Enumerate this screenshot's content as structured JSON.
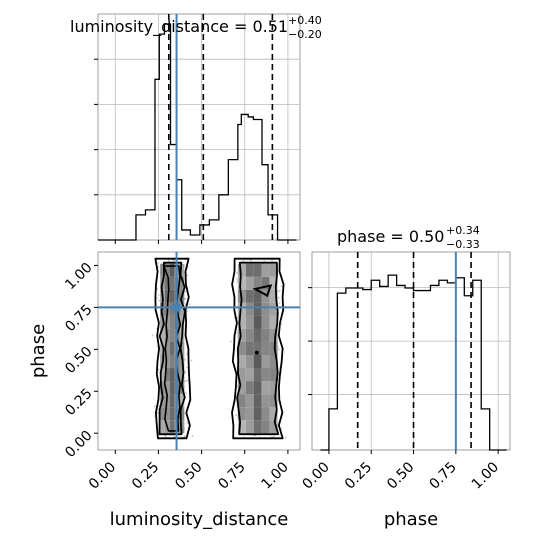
{
  "chart_data": [
    {
      "type": "histogram",
      "panel": "luminosity_distance marginal",
      "title": {
        "main": "luminosity_distance = 0.51",
        "sup": "+0.40",
        "sub": "−0.20"
      },
      "x_range": [
        -0.1,
        1.07
      ],
      "bin_edges": [
        -0.1,
        -0.045,
        0.01,
        0.065,
        0.12,
        0.175,
        0.23,
        0.255,
        0.285,
        0.32,
        0.355,
        0.385,
        0.435,
        0.49,
        0.545,
        0.6,
        0.655,
        0.71,
        0.73,
        0.77,
        0.8,
        0.85,
        0.885,
        0.94,
        0.995,
        1.05
      ],
      "counts": [
        0,
        0,
        0,
        0,
        0.5,
        0.6,
        3.2,
        4.1,
        4.3,
        1.9,
        1.2,
        0.2,
        0.1,
        0.3,
        0.4,
        0.9,
        1.6,
        2.3,
        2.5,
        2.45,
        2.4,
        1.5,
        0.5,
        0,
        0
      ],
      "y_max": 4.5,
      "quantile_lines": [
        0.31,
        0.51,
        0.91
      ],
      "truth": 0.355
    },
    {
      "type": "histogram",
      "panel": "phase marginal",
      "title": {
        "main": "phase = 0.50",
        "sup": "+0.34",
        "sub": "−0.33"
      },
      "x_range": [
        -0.1,
        1.07
      ],
      "tick_values": [
        0.0,
        0.25,
        0.5,
        0.75,
        1.0
      ],
      "tick_labels": [
        "0.00",
        "0.25",
        "0.50",
        "0.75",
        "1.00"
      ],
      "xlabel": "phase",
      "bin_edges": [
        -0.05,
        0.0,
        0.05,
        0.1,
        0.15,
        0.2,
        0.25,
        0.3,
        0.35,
        0.4,
        0.45,
        0.5,
        0.55,
        0.6,
        0.65,
        0.7,
        0.75,
        0.8,
        0.85,
        0.9,
        0.95,
        1.0,
        1.05
      ],
      "counts": [
        0,
        0.8,
        3.05,
        3.15,
        3.15,
        3.12,
        3.3,
        3.18,
        3.4,
        3.2,
        3.15,
        3.1,
        3.1,
        3.2,
        3.3,
        3.25,
        3.35,
        3.0,
        3.3,
        0.8,
        0,
        0
      ],
      "y_max": 3.85,
      "quantile_lines": [
        0.17,
        0.5,
        0.84
      ],
      "truth": 0.75
    },
    {
      "type": "2d-density",
      "panel": "joint luminosity_distance vs phase",
      "x_range": [
        -0.1,
        1.07
      ],
      "y_range": [
        -0.1,
        1.08
      ],
      "x_tick_values": [
        0.0,
        0.25,
        0.5,
        0.75,
        1.0
      ],
      "x_tick_labels": [
        "0.00",
        "0.25",
        "0.50",
        "0.75",
        "1.00"
      ],
      "y_tick_values": [
        0.0,
        0.25,
        0.5,
        0.75,
        1.0
      ],
      "y_tick_labels": [
        "0.00",
        "0.25",
        "0.50",
        "0.75",
        "1.00"
      ],
      "xlabel": "luminosity_distance",
      "ylabel": "phase",
      "modes": [
        {
          "x_range": [
            0.24,
            0.42
          ],
          "y_range": [
            -0.03,
            1.04
          ]
        },
        {
          "x_range": [
            0.69,
            0.96
          ],
          "y_range": [
            -0.03,
            1.04
          ]
        }
      ],
      "truth": {
        "x": 0.355,
        "y": 0.75
      }
    }
  ]
}
